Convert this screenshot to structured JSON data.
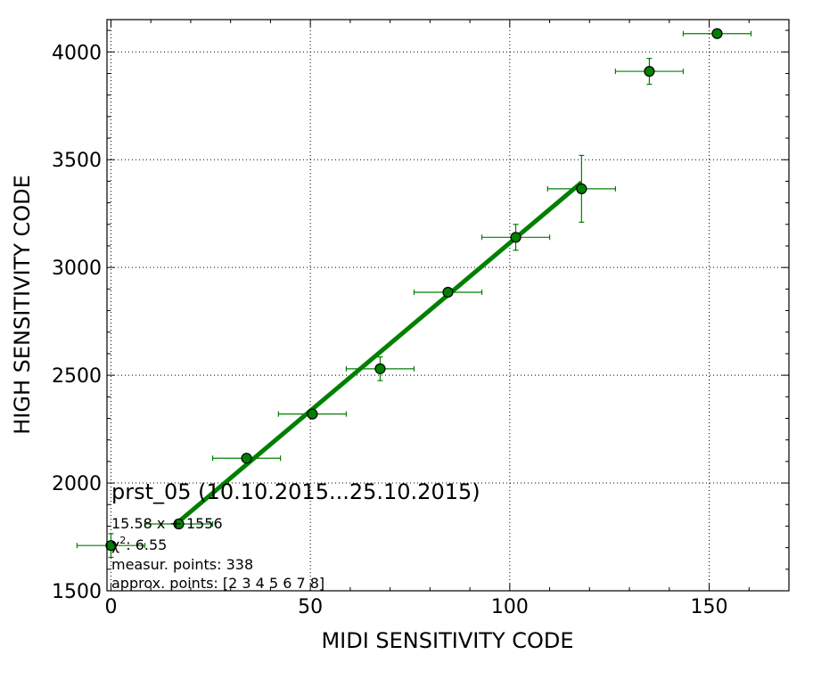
{
  "chart_data": {
    "type": "scatter",
    "title": "",
    "xlabel": "MIDI SENSITIVITY CODE",
    "ylabel": "HIGH SENSITIVITY CODE",
    "xlim": [
      -1,
      170
    ],
    "ylim": [
      1500,
      4150
    ],
    "x_ticks": [
      0,
      50,
      100,
      150
    ],
    "y_ticks": [
      1500,
      2000,
      2500,
      3000,
      3500,
      4000
    ],
    "grid": true,
    "color": "#008000",
    "series": [
      {
        "points": [
          {
            "x": 0,
            "y": 1710,
            "xerr": 8.5,
            "yerr": 55
          },
          {
            "x": 17,
            "y": 1810,
            "xerr": 8.5,
            "yerr": 15
          },
          {
            "x": 34,
            "y": 2115,
            "xerr": 8.5,
            "yerr": 10
          },
          {
            "x": 50.5,
            "y": 2320,
            "xerr": 8.5,
            "yerr": 20
          },
          {
            "x": 67.5,
            "y": 2530,
            "xerr": 8.5,
            "yerr": 55
          },
          {
            "x": 84.5,
            "y": 2885,
            "xerr": 8.5,
            "yerr": 20
          },
          {
            "x": 101.5,
            "y": 3140,
            "xerr": 8.5,
            "yerr": 60
          },
          {
            "x": 118,
            "y": 3365,
            "xerr": 8.5,
            "yerr": 155
          },
          {
            "x": 135,
            "y": 3910,
            "xerr": 8.5,
            "yerr": 60
          },
          {
            "x": 152,
            "y": 4085,
            "xerr": 8.5,
            "yerr": 10
          }
        ]
      }
    ],
    "fit_line": {
      "slope": 15.58,
      "intercept": 1556,
      "x_range": [
        17,
        118
      ]
    },
    "annotations": {
      "title": "prst_05 (10.10.2015...25.10.2015)",
      "equation": "15.58 x + 1556",
      "chi2_symbol": "χ",
      "chi2_superscript": "2",
      "chi2_value": ": 6.55",
      "measur_points": "measur. points: 338",
      "approx_points": "approx. points: [2 3 4 5 6 7 8]"
    }
  }
}
